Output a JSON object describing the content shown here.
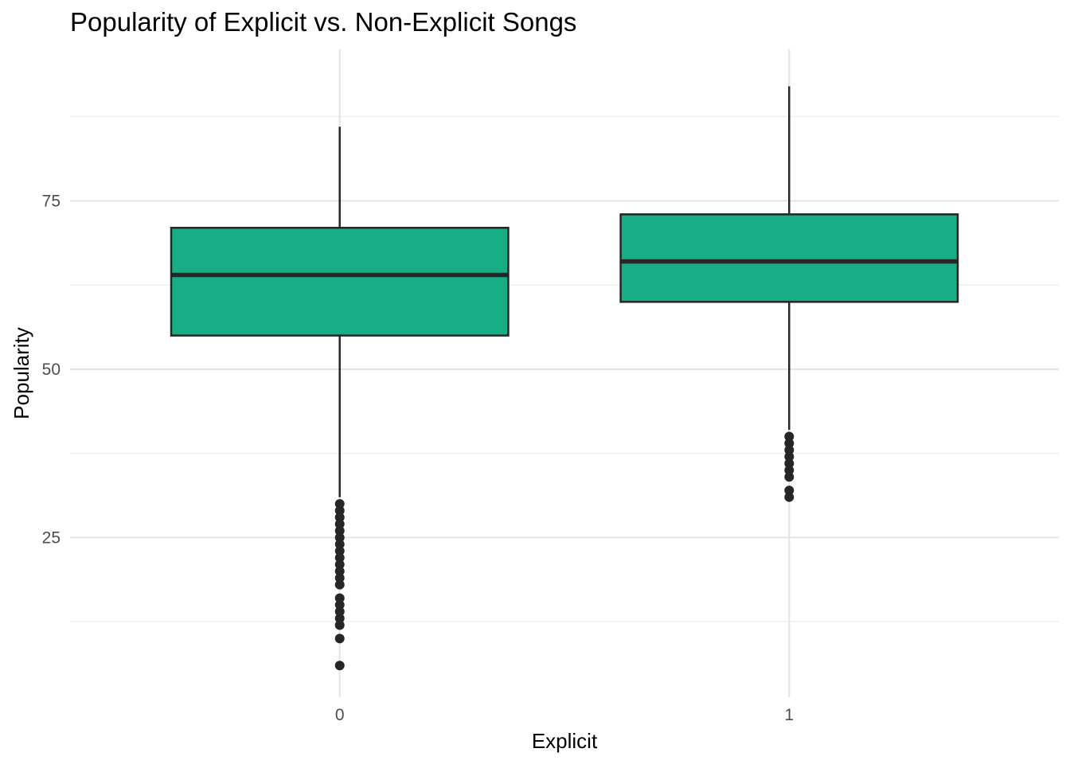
{
  "chart_data": {
    "type": "boxplot",
    "title": "Popularity of Explicit vs. Non-Explicit Songs",
    "xlabel": "Explicit",
    "ylabel": "Popularity",
    "categories": [
      "0",
      "1"
    ],
    "ylim": [
      1.3,
      97.5
    ],
    "y_ticks": [
      25,
      50,
      75
    ],
    "y_minor_ticks": [
      12.5,
      37.5,
      62.5,
      87.5
    ],
    "grid": true,
    "fill_color": "#18AE85",
    "line_color": "#262626",
    "grid_color": "#E5E5E5",
    "boxes": [
      {
        "category": "0",
        "whisker_low": 31,
        "q1": 55,
        "median": 64,
        "q3": 71,
        "whisker_high": 86,
        "outliers": [
          30,
          29,
          28,
          27,
          26,
          25,
          24,
          23,
          22,
          21,
          20,
          19,
          18,
          16,
          15,
          14,
          13,
          12,
          10,
          6
        ]
      },
      {
        "category": "1",
        "whisker_low": 41,
        "q1": 60,
        "median": 66,
        "q3": 73,
        "whisker_high": 92,
        "outliers": [
          40,
          39,
          38,
          37,
          36,
          35,
          34,
          32,
          31
        ]
      }
    ]
  }
}
